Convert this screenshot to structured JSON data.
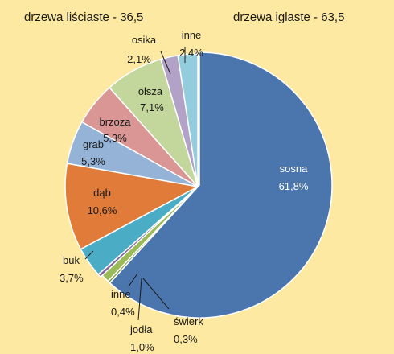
{
  "chart_data": {
    "type": "pie",
    "title": "",
    "groups": [
      {
        "label": "drzewa liściaste - 36,5"
      },
      {
        "label": "drzewa iglaste - 63,5"
      }
    ],
    "slices": [
      {
        "name": "sosna",
        "value_label": "61,8%",
        "value": 61.8,
        "color": "#4a76ad"
      },
      {
        "name": "świerk",
        "value_label": "0,3%",
        "value": 0.3,
        "color": "#7a9a3a"
      },
      {
        "name": "jodła",
        "value_label": "1,0%",
        "value": 1.0,
        "color": "#9bbb59"
      },
      {
        "name": "inne",
        "value_label": "0,4%",
        "value": 0.4,
        "color": "#8064a2"
      },
      {
        "name": "buk",
        "value_label": "3,7%",
        "value": 3.7,
        "color": "#4bacc6"
      },
      {
        "name": "dąb",
        "value_label": "10,6%",
        "value": 10.6,
        "color": "#e07b39"
      },
      {
        "name": "grab",
        "value_label": "5,3%",
        "value": 5.3,
        "color": "#95b3d7"
      },
      {
        "name": "brzoza",
        "value_label": "5,3%",
        "value": 5.3,
        "color": "#d99694"
      },
      {
        "name": "olsza",
        "value_label": "7,1%",
        "value": 7.1,
        "color": "#c3d69b"
      },
      {
        "name": "osika",
        "value_label": "2,1%",
        "value": 2.1,
        "color": "#b3a2c7"
      },
      {
        "name": "inne",
        "value_label": "2,4%",
        "value": 2.4,
        "color": "#93cddd"
      }
    ]
  }
}
